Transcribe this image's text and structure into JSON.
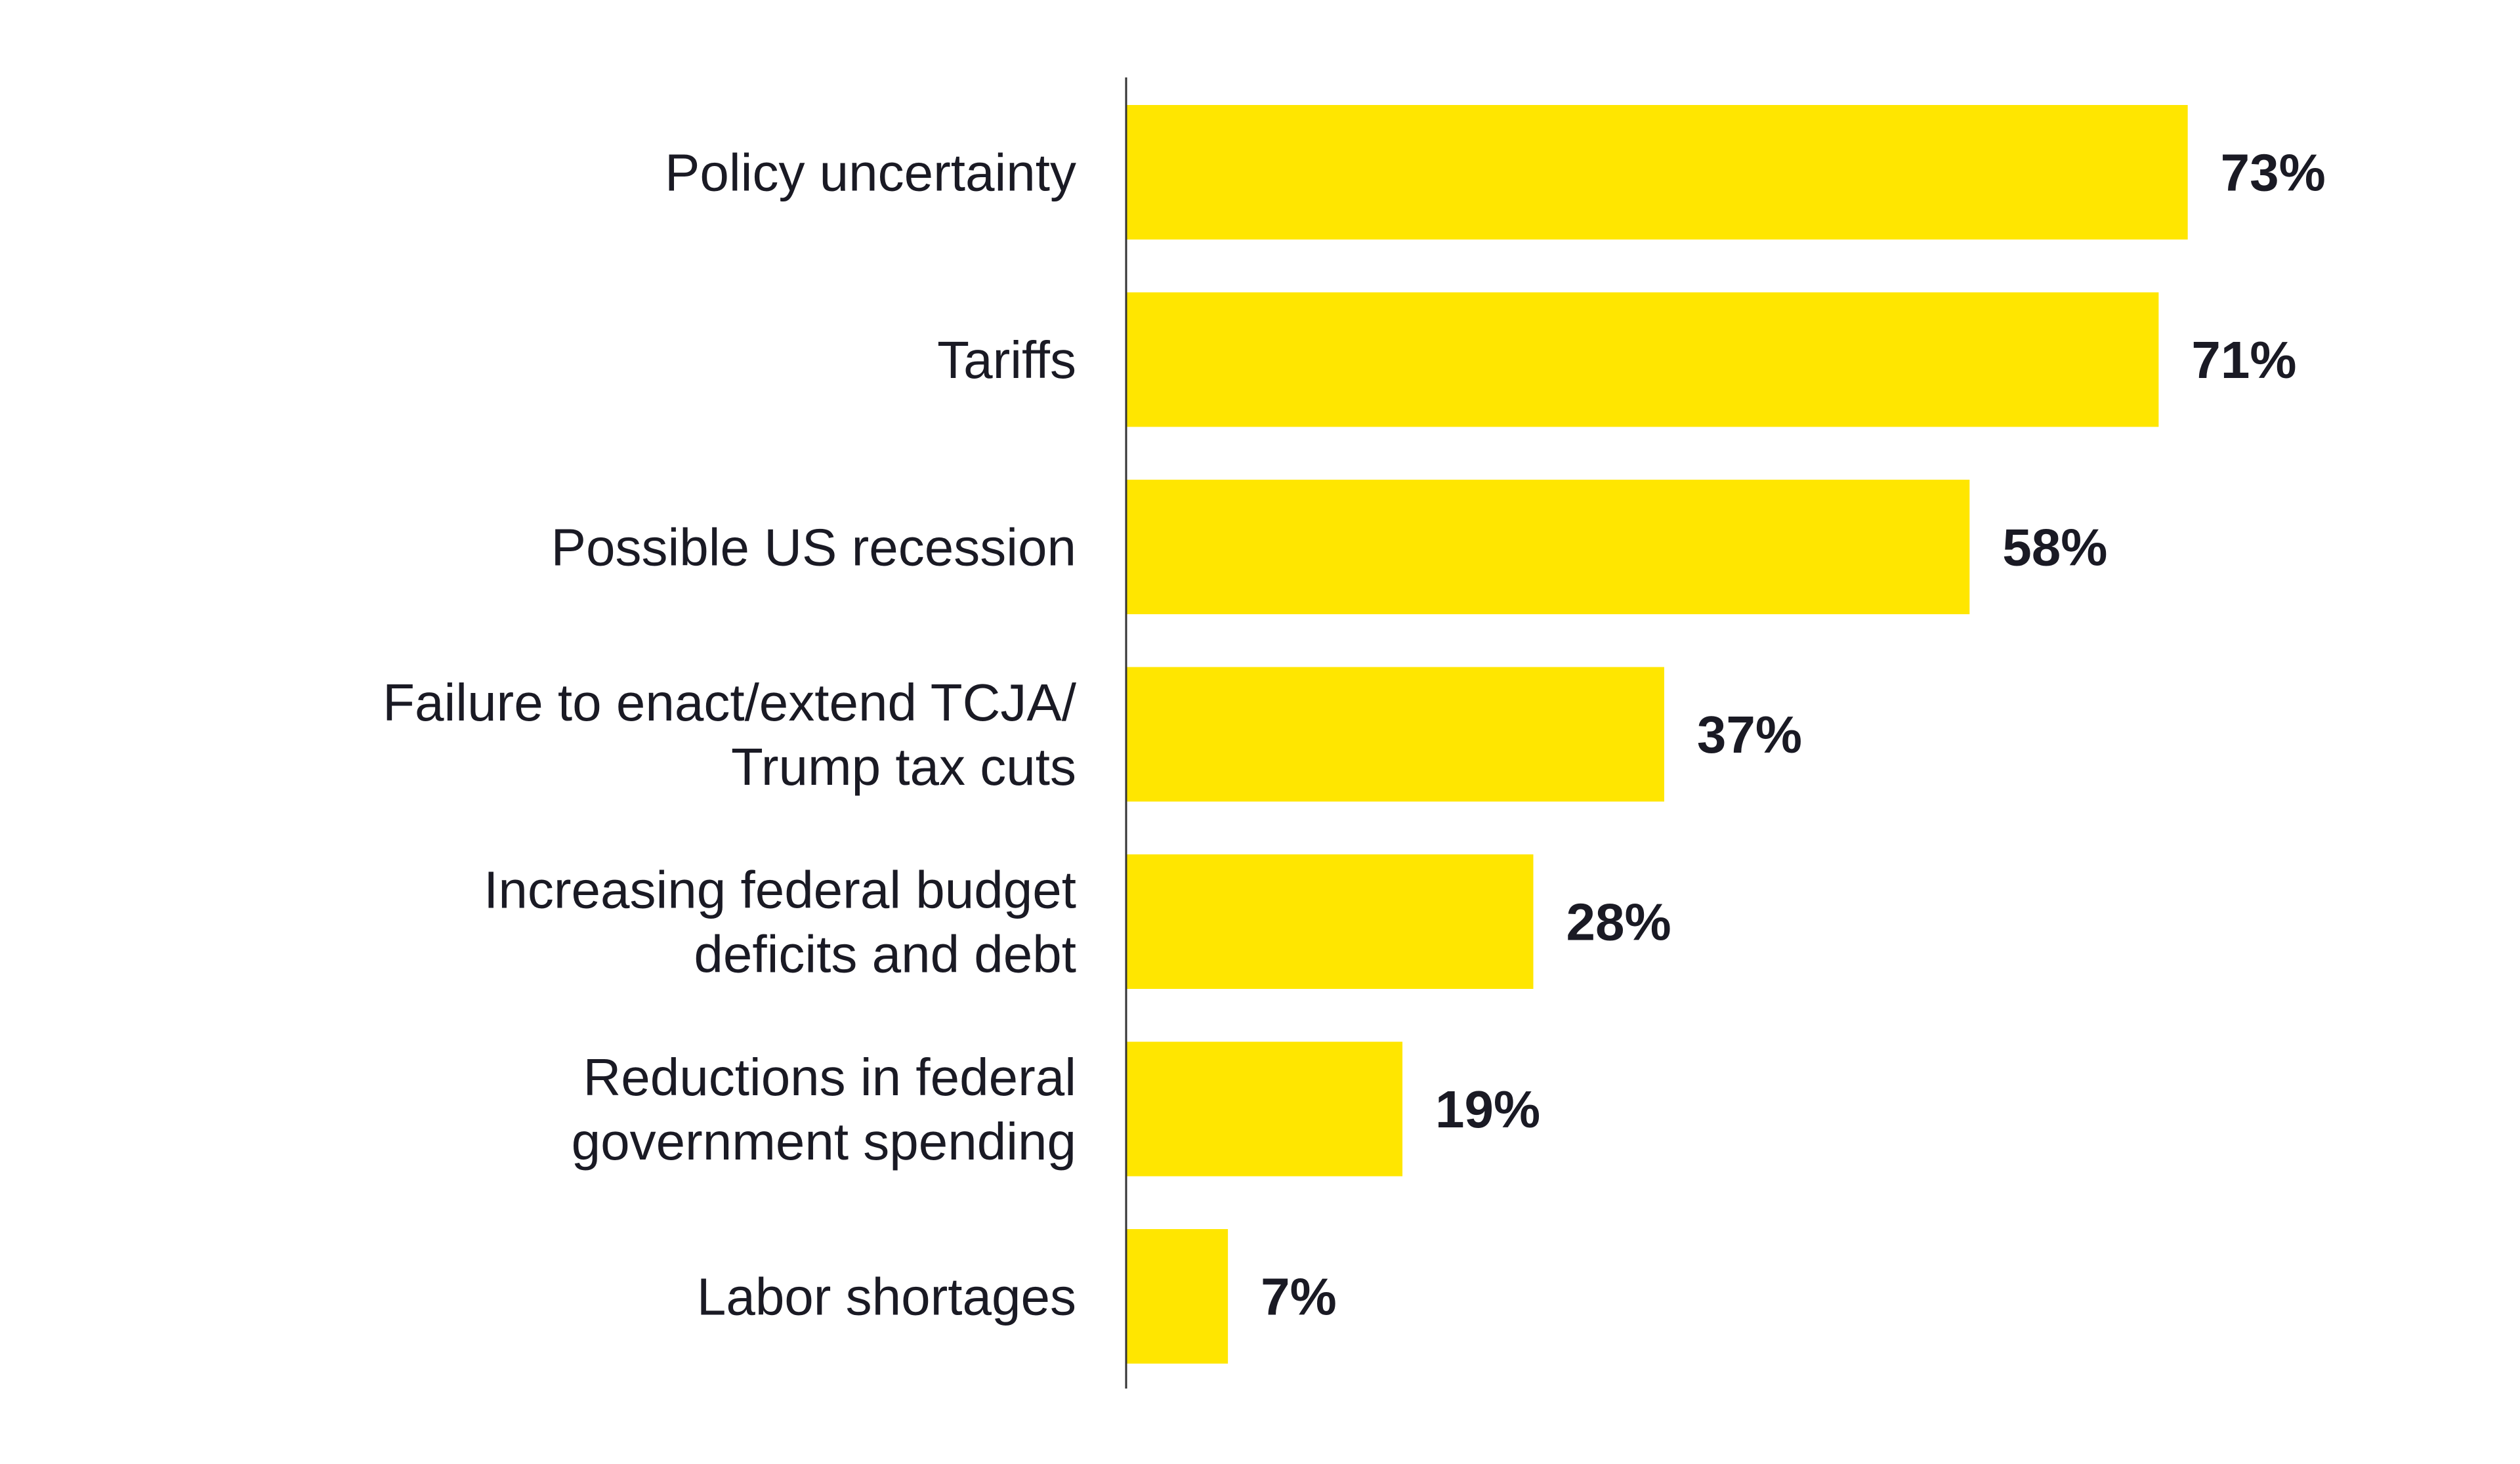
{
  "chart_data": {
    "type": "bar",
    "orientation": "horizontal",
    "title": "",
    "xlabel": "",
    "ylabel": "",
    "categories": [
      [
        "Policy uncertainty"
      ],
      [
        "Tariffs"
      ],
      [
        "Possible US recession"
      ],
      [
        "Failure to enact/extend TCJA/",
        "Trump tax cuts"
      ],
      [
        "Increasing federal budget",
        "deficits and debt"
      ],
      [
        "Reductions in federal",
        "government spending"
      ],
      [
        "Labor shortages"
      ]
    ],
    "values": [
      73,
      71,
      58,
      37,
      28,
      19,
      7
    ],
    "value_labels": [
      "73%",
      "71%",
      "58%",
      "37%",
      "28%",
      "19%",
      "7%"
    ],
    "xlim": [
      0,
      100
    ],
    "grid": false,
    "bar_color": "#FFE600",
    "text_color": "#1a1a24"
  }
}
